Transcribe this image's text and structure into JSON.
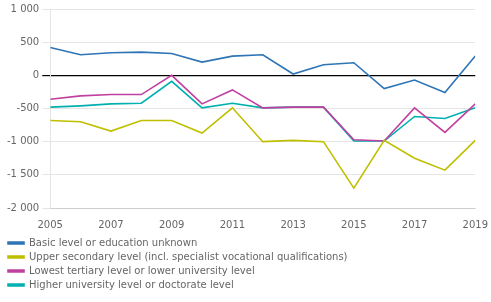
{
  "chart_data": {
    "type": "line",
    "x": [
      2005,
      2006,
      2007,
      2008,
      2009,
      2010,
      2011,
      2012,
      2013,
      2014,
      2015,
      2016,
      2017,
      2018,
      2019
    ],
    "series": [
      {
        "name": "Basic level or education unknown",
        "color": "#2E75B6",
        "values": [
          420,
          310,
          340,
          350,
          330,
          200,
          290,
          310,
          20,
          160,
          190,
          -200,
          -70,
          -260,
          290
        ]
      },
      {
        "name": "Upper secondary level (incl. specialist vocational qualifications)",
        "color": "#BFBF00",
        "values": [
          -680,
          -700,
          -840,
          -680,
          -680,
          -870,
          -490,
          -1000,
          -980,
          -1000,
          -1700,
          -980,
          -1250,
          -1430,
          -980
        ]
      },
      {
        "name": "Lowest tertiary level or lower university level",
        "color": "#C040A0",
        "values": [
          -360,
          -310,
          -290,
          -290,
          0,
          -430,
          -220,
          -490,
          -480,
          -480,
          -970,
          -990,
          -490,
          -860,
          -430
        ]
      },
      {
        "name": "Higher university level or doctorate level",
        "color": "#00B0B0",
        "values": [
          -480,
          -460,
          -430,
          -420,
          -90,
          -490,
          -420,
          -490,
          -480,
          -480,
          -990,
          -990,
          -620,
          -650,
          -490
        ]
      }
    ],
    "xlim": [
      2005,
      2019
    ],
    "xticks": [
      2005,
      2007,
      2009,
      2011,
      2013,
      2015,
      2017,
      2019
    ],
    "ylim": [
      -2000,
      1000
    ],
    "yticks": [
      {
        "value": -2000,
        "label": "-2 000"
      },
      {
        "value": -1500,
        "label": "-1 500"
      },
      {
        "value": -1000,
        "label": "-1 000"
      },
      -500,
      0,
      500,
      {
        "value": 1000,
        "label": "1 000"
      }
    ],
    "grid": true,
    "legend": "bottom"
  }
}
